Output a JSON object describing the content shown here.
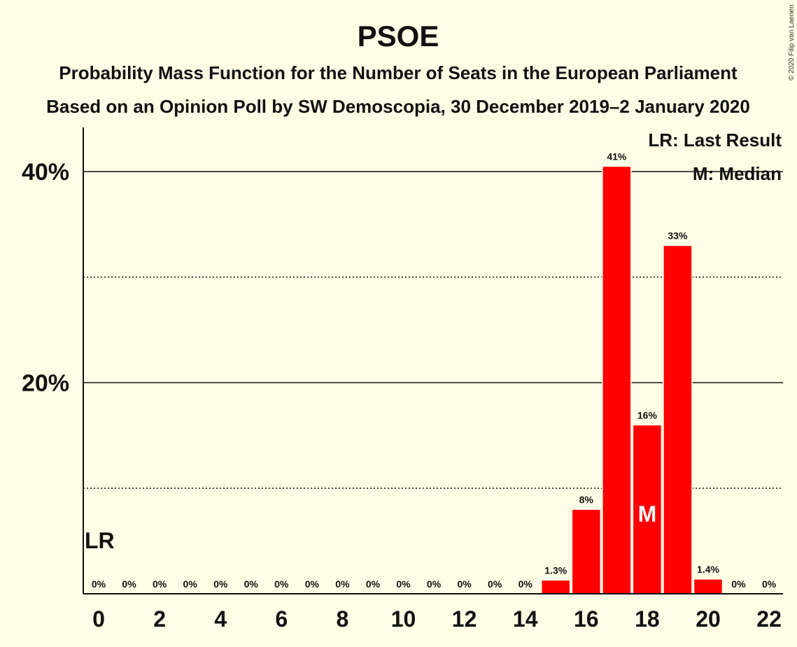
{
  "colors": {
    "bar": "#FF0000",
    "background": "#FFFDE5",
    "ink": "#111111"
  },
  "copyright": "© 2020 Filip van Laenen",
  "legend": {
    "last_result": "LR: Last Result",
    "median": "M: Median"
  },
  "chart_data": {
    "type": "bar",
    "title": "PSOE",
    "subtitle": "Probability Mass Function for the Number of Seats in the European Parliament",
    "subtitle2": "Based on an Opinion Poll by SW Demoscopia, 30 December 2019–2 January 2020",
    "categories": [
      0,
      1,
      2,
      3,
      4,
      5,
      6,
      7,
      8,
      9,
      10,
      11,
      12,
      13,
      14,
      15,
      16,
      17,
      18,
      19,
      20,
      21,
      22
    ],
    "values": [
      0,
      0,
      0,
      0,
      0,
      0,
      0,
      0,
      0,
      0,
      0,
      0,
      0,
      0,
      0,
      1.3,
      8,
      40.5,
      16,
      33,
      1.4,
      0,
      0
    ],
    "value_labels": [
      "0%",
      "0%",
      "0%",
      "0%",
      "0%",
      "0%",
      "0%",
      "0%",
      "0%",
      "0%",
      "0%",
      "0%",
      "0%",
      "0%",
      "0%",
      "1.3%",
      "8%",
      "41%",
      "16%",
      "33%",
      "1.4%",
      "0%",
      "0%"
    ],
    "x_tick_labels": [
      "0",
      "2",
      "4",
      "6",
      "8",
      "10",
      "12",
      "14",
      "16",
      "18",
      "20",
      "22"
    ],
    "y_tick_labels": [
      "20%",
      "40%"
    ],
    "ylim": [
      0,
      44
    ],
    "grid_solid": [
      20,
      40
    ],
    "grid_dotted": [
      10,
      30
    ],
    "last_result": {
      "seat": 0,
      "label": "LR"
    },
    "median": {
      "seat": 18,
      "label": "M"
    }
  }
}
